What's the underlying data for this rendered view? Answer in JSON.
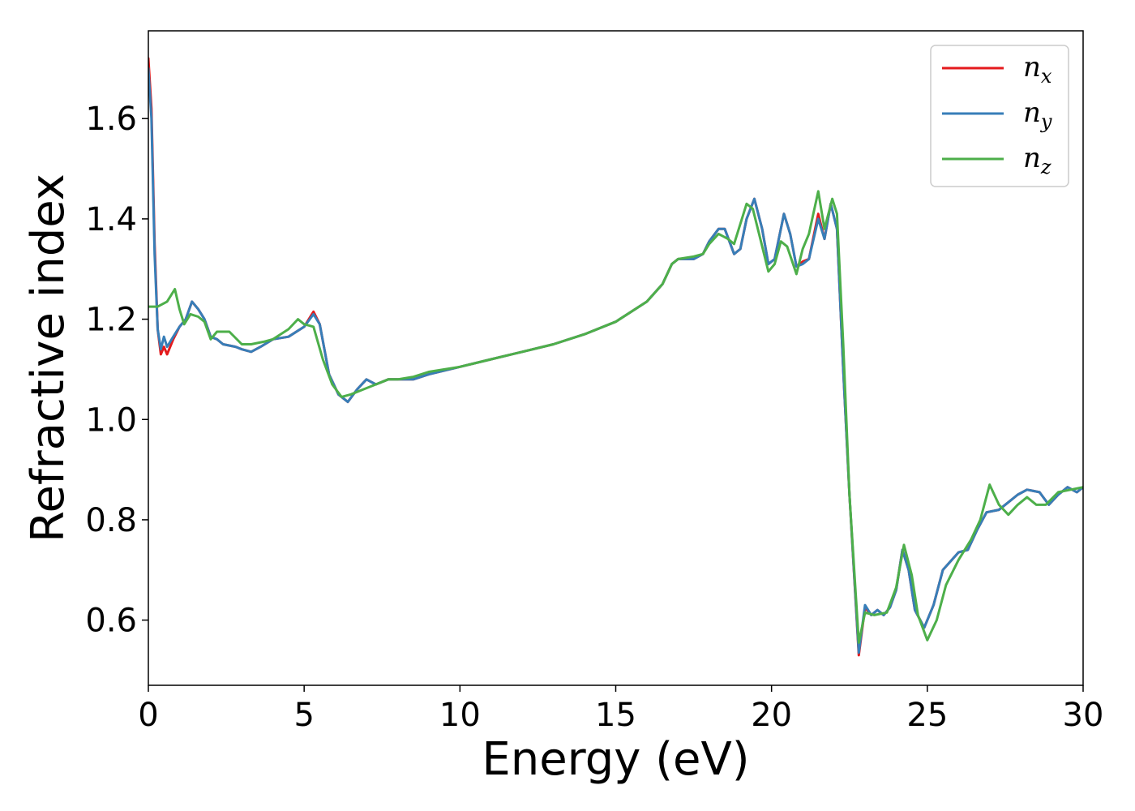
{
  "chart_data": {
    "type": "line",
    "title": "",
    "xlabel": "Energy (eV)",
    "ylabel": "Refractive index",
    "xlim": [
      0,
      30
    ],
    "ylim": [
      0.47,
      1.775
    ],
    "xticks": [
      0,
      5,
      10,
      15,
      20,
      25,
      30
    ],
    "xtick_labels": [
      "0",
      "5",
      "10",
      "15",
      "20",
      "25",
      "30"
    ],
    "yticks": [
      0.6,
      0.8,
      1.0,
      1.2,
      1.4,
      1.6
    ],
    "ytick_labels": [
      "0.6",
      "0.8",
      "1.0",
      "1.2",
      "1.4",
      "1.6"
    ],
    "grid": false,
    "legend_position": "top-right",
    "series": [
      {
        "name": "n",
        "subscript": "x",
        "color": "#e41a1c",
        "points": [
          [
            0,
            1.72
          ],
          [
            0.1,
            1.62
          ],
          [
            0.2,
            1.35
          ],
          [
            0.3,
            1.18
          ],
          [
            0.4,
            1.13
          ],
          [
            0.5,
            1.145
          ],
          [
            0.6,
            1.13
          ],
          [
            0.8,
            1.16
          ],
          [
            1.0,
            1.185
          ],
          [
            1.2,
            1.2
          ],
          [
            1.4,
            1.235
          ],
          [
            1.6,
            1.22
          ],
          [
            1.8,
            1.2
          ],
          [
            2.0,
            1.165
          ],
          [
            2.2,
            1.16
          ],
          [
            2.4,
            1.15
          ],
          [
            2.8,
            1.145
          ],
          [
            3.0,
            1.14
          ],
          [
            3.3,
            1.135
          ],
          [
            3.6,
            1.145
          ],
          [
            4.0,
            1.16
          ],
          [
            4.5,
            1.165
          ],
          [
            5.0,
            1.185
          ],
          [
            5.3,
            1.215
          ],
          [
            5.5,
            1.19
          ],
          [
            5.8,
            1.09
          ],
          [
            6.1,
            1.05
          ],
          [
            6.4,
            1.035
          ],
          [
            6.7,
            1.06
          ],
          [
            7.0,
            1.08
          ],
          [
            7.3,
            1.07
          ],
          [
            7.7,
            1.08
          ],
          [
            8.0,
            1.08
          ],
          [
            8.5,
            1.08
          ],
          [
            9.0,
            1.09
          ],
          [
            10,
            1.105
          ],
          [
            11,
            1.12
          ],
          [
            12,
            1.135
          ],
          [
            13,
            1.15
          ],
          [
            14,
            1.17
          ],
          [
            15,
            1.195
          ],
          [
            16,
            1.235
          ],
          [
            16.5,
            1.27
          ],
          [
            16.8,
            1.31
          ],
          [
            17.0,
            1.32
          ],
          [
            17.5,
            1.32
          ],
          [
            17.8,
            1.33
          ],
          [
            18.0,
            1.355
          ],
          [
            18.3,
            1.38
          ],
          [
            18.5,
            1.38
          ],
          [
            18.8,
            1.33
          ],
          [
            19.0,
            1.34
          ],
          [
            19.2,
            1.4
          ],
          [
            19.45,
            1.44
          ],
          [
            19.7,
            1.38
          ],
          [
            19.9,
            1.31
          ],
          [
            20.1,
            1.32
          ],
          [
            20.4,
            1.41
          ],
          [
            20.6,
            1.37
          ],
          [
            20.8,
            1.305
          ],
          [
            21.0,
            1.315
          ],
          [
            21.2,
            1.32
          ],
          [
            21.5,
            1.41
          ],
          [
            21.7,
            1.36
          ],
          [
            21.9,
            1.43
          ],
          [
            22.1,
            1.38
          ],
          [
            22.3,
            1.1
          ],
          [
            22.5,
            0.85
          ],
          [
            22.8,
            0.53
          ],
          [
            23.0,
            0.625
          ],
          [
            23.2,
            0.61
          ],
          [
            23.4,
            0.62
          ],
          [
            23.6,
            0.61
          ],
          [
            23.8,
            0.625
          ],
          [
            24.0,
            0.66
          ],
          [
            24.2,
            0.74
          ],
          [
            24.4,
            0.7
          ],
          [
            24.6,
            0.62
          ],
          [
            24.9,
            0.585
          ],
          [
            25.2,
            0.63
          ],
          [
            25.5,
            0.7
          ],
          [
            26.0,
            0.735
          ],
          [
            26.3,
            0.74
          ],
          [
            26.6,
            0.78
          ],
          [
            26.9,
            0.815
          ],
          [
            27.3,
            0.82
          ],
          [
            27.6,
            0.835
          ],
          [
            27.9,
            0.85
          ],
          [
            28.2,
            0.86
          ],
          [
            28.6,
            0.855
          ],
          [
            28.9,
            0.83
          ],
          [
            29.2,
            0.85
          ],
          [
            29.5,
            0.865
          ],
          [
            29.8,
            0.855
          ],
          [
            30,
            0.865
          ]
        ]
      },
      {
        "name": "n",
        "subscript": "y",
        "color": "#377eb8",
        "points": [
          [
            0,
            1.7
          ],
          [
            0.1,
            1.6
          ],
          [
            0.2,
            1.33
          ],
          [
            0.3,
            1.18
          ],
          [
            0.4,
            1.14
          ],
          [
            0.5,
            1.165
          ],
          [
            0.6,
            1.145
          ],
          [
            0.8,
            1.165
          ],
          [
            1.0,
            1.185
          ],
          [
            1.2,
            1.2
          ],
          [
            1.4,
            1.235
          ],
          [
            1.6,
            1.22
          ],
          [
            1.8,
            1.2
          ],
          [
            2.0,
            1.165
          ],
          [
            2.2,
            1.16
          ],
          [
            2.4,
            1.15
          ],
          [
            2.8,
            1.145
          ],
          [
            3.0,
            1.14
          ],
          [
            3.3,
            1.135
          ],
          [
            3.6,
            1.145
          ],
          [
            4.0,
            1.16
          ],
          [
            4.5,
            1.165
          ],
          [
            5.0,
            1.185
          ],
          [
            5.3,
            1.21
          ],
          [
            5.5,
            1.19
          ],
          [
            5.8,
            1.09
          ],
          [
            6.1,
            1.05
          ],
          [
            6.4,
            1.035
          ],
          [
            6.7,
            1.06
          ],
          [
            7.0,
            1.08
          ],
          [
            7.3,
            1.07
          ],
          [
            7.7,
            1.08
          ],
          [
            8.0,
            1.08
          ],
          [
            8.5,
            1.08
          ],
          [
            9.0,
            1.09
          ],
          [
            10,
            1.105
          ],
          [
            11,
            1.12
          ],
          [
            12,
            1.135
          ],
          [
            13,
            1.15
          ],
          [
            14,
            1.17
          ],
          [
            15,
            1.195
          ],
          [
            16,
            1.235
          ],
          [
            16.5,
            1.27
          ],
          [
            16.8,
            1.31
          ],
          [
            17.0,
            1.32
          ],
          [
            17.5,
            1.32
          ],
          [
            17.8,
            1.33
          ],
          [
            18.0,
            1.355
          ],
          [
            18.3,
            1.38
          ],
          [
            18.5,
            1.38
          ],
          [
            18.8,
            1.33
          ],
          [
            19.0,
            1.34
          ],
          [
            19.2,
            1.4
          ],
          [
            19.45,
            1.44
          ],
          [
            19.7,
            1.38
          ],
          [
            19.9,
            1.31
          ],
          [
            20.1,
            1.32
          ],
          [
            20.4,
            1.41
          ],
          [
            20.6,
            1.37
          ],
          [
            20.8,
            1.305
          ],
          [
            21.0,
            1.31
          ],
          [
            21.2,
            1.32
          ],
          [
            21.5,
            1.4
          ],
          [
            21.7,
            1.36
          ],
          [
            21.9,
            1.43
          ],
          [
            22.1,
            1.38
          ],
          [
            22.3,
            1.1
          ],
          [
            22.5,
            0.85
          ],
          [
            22.8,
            0.535
          ],
          [
            23.0,
            0.63
          ],
          [
            23.2,
            0.61
          ],
          [
            23.4,
            0.62
          ],
          [
            23.6,
            0.61
          ],
          [
            23.8,
            0.625
          ],
          [
            24.0,
            0.66
          ],
          [
            24.2,
            0.74
          ],
          [
            24.4,
            0.7
          ],
          [
            24.6,
            0.62
          ],
          [
            24.9,
            0.585
          ],
          [
            25.2,
            0.63
          ],
          [
            25.5,
            0.7
          ],
          [
            26.0,
            0.735
          ],
          [
            26.3,
            0.74
          ],
          [
            26.6,
            0.78
          ],
          [
            26.9,
            0.815
          ],
          [
            27.3,
            0.82
          ],
          [
            27.6,
            0.835
          ],
          [
            27.9,
            0.85
          ],
          [
            28.2,
            0.86
          ],
          [
            28.6,
            0.855
          ],
          [
            28.9,
            0.83
          ],
          [
            29.2,
            0.85
          ],
          [
            29.5,
            0.865
          ],
          [
            29.8,
            0.855
          ],
          [
            30,
            0.865
          ]
        ]
      },
      {
        "name": "n",
        "subscript": "z",
        "color": "#4daf4a",
        "points": [
          [
            0,
            1.225
          ],
          [
            0.3,
            1.225
          ],
          [
            0.6,
            1.235
          ],
          [
            0.85,
            1.26
          ],
          [
            1.0,
            1.22
          ],
          [
            1.15,
            1.19
          ],
          [
            1.35,
            1.21
          ],
          [
            1.6,
            1.205
          ],
          [
            1.8,
            1.195
          ],
          [
            2.0,
            1.16
          ],
          [
            2.2,
            1.175
          ],
          [
            2.6,
            1.175
          ],
          [
            3.0,
            1.15
          ],
          [
            3.3,
            1.15
          ],
          [
            3.7,
            1.155
          ],
          [
            4.0,
            1.16
          ],
          [
            4.5,
            1.18
          ],
          [
            4.8,
            1.2
          ],
          [
            5.0,
            1.19
          ],
          [
            5.3,
            1.185
          ],
          [
            5.6,
            1.12
          ],
          [
            5.9,
            1.07
          ],
          [
            6.2,
            1.045
          ],
          [
            6.5,
            1.05
          ],
          [
            6.9,
            1.06
          ],
          [
            7.3,
            1.07
          ],
          [
            7.7,
            1.08
          ],
          [
            8.0,
            1.08
          ],
          [
            8.5,
            1.085
          ],
          [
            9.0,
            1.095
          ],
          [
            10,
            1.105
          ],
          [
            11,
            1.12
          ],
          [
            12,
            1.135
          ],
          [
            13,
            1.15
          ],
          [
            14,
            1.17
          ],
          [
            15,
            1.195
          ],
          [
            16,
            1.235
          ],
          [
            16.5,
            1.27
          ],
          [
            16.8,
            1.31
          ],
          [
            17.0,
            1.32
          ],
          [
            17.5,
            1.325
          ],
          [
            17.8,
            1.33
          ],
          [
            18.0,
            1.35
          ],
          [
            18.3,
            1.37
          ],
          [
            18.6,
            1.36
          ],
          [
            18.8,
            1.35
          ],
          [
            19.0,
            1.39
          ],
          [
            19.2,
            1.43
          ],
          [
            19.4,
            1.42
          ],
          [
            19.6,
            1.37
          ],
          [
            19.9,
            1.295
          ],
          [
            20.1,
            1.31
          ],
          [
            20.3,
            1.355
          ],
          [
            20.5,
            1.345
          ],
          [
            20.8,
            1.29
          ],
          [
            21.0,
            1.34
          ],
          [
            21.2,
            1.37
          ],
          [
            21.5,
            1.455
          ],
          [
            21.7,
            1.38
          ],
          [
            21.95,
            1.44
          ],
          [
            22.1,
            1.41
          ],
          [
            22.3,
            1.15
          ],
          [
            22.5,
            0.85
          ],
          [
            22.8,
            0.555
          ],
          [
            23.0,
            0.615
          ],
          [
            23.3,
            0.61
          ],
          [
            23.7,
            0.615
          ],
          [
            24.0,
            0.665
          ],
          [
            24.25,
            0.75
          ],
          [
            24.5,
            0.69
          ],
          [
            24.7,
            0.61
          ],
          [
            25.0,
            0.56
          ],
          [
            25.3,
            0.6
          ],
          [
            25.6,
            0.67
          ],
          [
            26.0,
            0.72
          ],
          [
            26.4,
            0.76
          ],
          [
            26.7,
            0.8
          ],
          [
            27.0,
            0.87
          ],
          [
            27.3,
            0.83
          ],
          [
            27.6,
            0.81
          ],
          [
            27.9,
            0.83
          ],
          [
            28.2,
            0.845
          ],
          [
            28.5,
            0.83
          ],
          [
            28.8,
            0.83
          ],
          [
            29.2,
            0.855
          ],
          [
            29.6,
            0.86
          ],
          [
            30,
            0.865
          ]
        ]
      }
    ]
  }
}
